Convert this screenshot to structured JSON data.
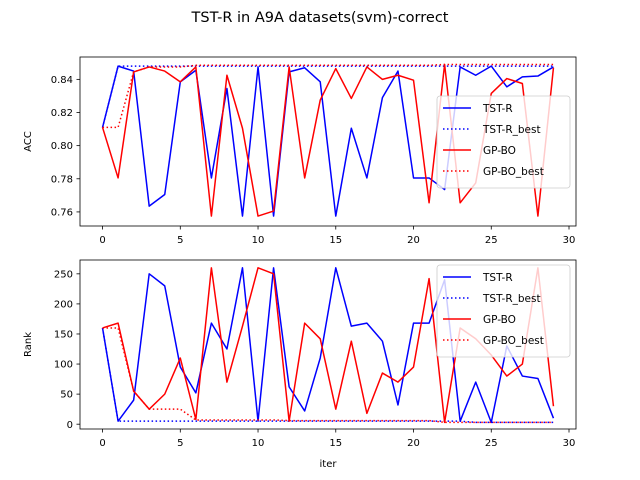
{
  "figure": {
    "title": "TST-R in A9A datasets(svm)-correct"
  },
  "chart_data": [
    {
      "type": "line",
      "id": "acc",
      "title": "",
      "xlabel": "",
      "ylabel": "ACC",
      "xlim": [
        -1.45,
        30.45
      ],
      "ylim": [
        0.7515,
        0.8535
      ],
      "xticks": [
        0,
        5,
        10,
        15,
        20,
        25,
        30
      ],
      "xtick_labels": [
        "0",
        "5",
        "10",
        "15",
        "20",
        "25",
        "30"
      ],
      "yticks": [
        0.76,
        0.78,
        0.8,
        0.82,
        0.84
      ],
      "ytick_labels": [
        "0.76",
        "0.78",
        "0.80",
        "0.82",
        "0.84"
      ],
      "grid": false,
      "legend_position": "center-right",
      "x": [
        0,
        1,
        2,
        3,
        4,
        5,
        6,
        7,
        8,
        9,
        10,
        11,
        12,
        13,
        14,
        15,
        16,
        17,
        18,
        19,
        20,
        21,
        22,
        23,
        24,
        25,
        26,
        27,
        28,
        29
      ],
      "series": [
        {
          "name": "TST-R",
          "color": "#0000ff",
          "style": "solid",
          "values": [
            0.811,
            0.848,
            0.845,
            0.7635,
            0.7705,
            0.8385,
            0.8455,
            0.7805,
            0.8345,
            0.7575,
            0.8475,
            0.7575,
            0.8445,
            0.847,
            0.8385,
            0.7575,
            0.8105,
            0.7805,
            0.829,
            0.845,
            0.7805,
            0.7805,
            0.7735,
            0.8475,
            0.8425,
            0.848,
            0.8355,
            0.8415,
            0.842,
            0.8475
          ]
        },
        {
          "name": "TST-R_best",
          "color": "#0000ff",
          "style": "dotted",
          "values": [
            0.811,
            0.848,
            0.848,
            0.848,
            0.848,
            0.848,
            0.848,
            0.848,
            0.848,
            0.848,
            0.848,
            0.848,
            0.848,
            0.848,
            0.848,
            0.848,
            0.848,
            0.848,
            0.848,
            0.848,
            0.848,
            0.848,
            0.848,
            0.848,
            0.848,
            0.848,
            0.848,
            0.848,
            0.848,
            0.848
          ]
        },
        {
          "name": "GP-BO",
          "color": "#ff0000",
          "style": "solid",
          "values": [
            0.811,
            0.7805,
            0.8445,
            0.8475,
            0.845,
            0.8385,
            0.8475,
            0.7575,
            0.8425,
            0.8105,
            0.7575,
            0.7605,
            0.8475,
            0.7805,
            0.8275,
            0.8465,
            0.8285,
            0.8475,
            0.84,
            0.8425,
            0.8395,
            0.7655,
            0.849,
            0.7655,
            0.7775,
            0.8315,
            0.8405,
            0.8375,
            0.7575,
            0.847
          ]
        },
        {
          "name": "GP-BO_best",
          "color": "#ff0000",
          "style": "dotted",
          "values": [
            0.811,
            0.811,
            0.8445,
            0.8475,
            0.8475,
            0.8475,
            0.8485,
            0.8485,
            0.8485,
            0.8485,
            0.8485,
            0.8485,
            0.8485,
            0.8485,
            0.8485,
            0.8485,
            0.8485,
            0.8485,
            0.8485,
            0.8485,
            0.8485,
            0.8485,
            0.849,
            0.849,
            0.849,
            0.849,
            0.849,
            0.849,
            0.849,
            0.849
          ]
        }
      ]
    },
    {
      "type": "line",
      "id": "rank",
      "title": "",
      "xlabel": "iter",
      "ylabel": "Rank",
      "xlim": [
        -1.45,
        30.45
      ],
      "ylim": [
        -8,
        273
      ],
      "xticks": [
        0,
        5,
        10,
        15,
        20,
        25,
        30
      ],
      "xtick_labels": [
        "0",
        "5",
        "10",
        "15",
        "20",
        "25",
        "30"
      ],
      "yticks": [
        0,
        50,
        100,
        150,
        200,
        250
      ],
      "ytick_labels": [
        "0",
        "50",
        "100",
        "150",
        "200",
        "250"
      ],
      "grid": false,
      "legend_position": "upper-right",
      "x": [
        0,
        1,
        2,
        3,
        4,
        5,
        6,
        7,
        8,
        9,
        10,
        11,
        12,
        13,
        14,
        15,
        16,
        17,
        18,
        19,
        20,
        21,
        22,
        23,
        24,
        25,
        26,
        27,
        28,
        29
      ],
      "series": [
        {
          "name": "TST-R",
          "color": "#0000ff",
          "style": "solid",
          "values": [
            160,
            5,
            40,
            250,
            230,
            95,
            52,
            168,
            125,
            260,
            5,
            260,
            62,
            22,
            110,
            260,
            163,
            168,
            138,
            32,
            168,
            168,
            240,
            5,
            70,
            3,
            130,
            80,
            76,
            10
          ]
        },
        {
          "name": "TST-R_best",
          "color": "#0000ff",
          "style": "dotted",
          "values": [
            160,
            5,
            5,
            5,
            5,
            5,
            5,
            5,
            5,
            5,
            5,
            5,
            5,
            5,
            5,
            5,
            5,
            5,
            5,
            5,
            5,
            5,
            5,
            5,
            3,
            3,
            3,
            3,
            3,
            3
          ]
        },
        {
          "name": "GP-BO",
          "color": "#ff0000",
          "style": "solid",
          "values": [
            160,
            168,
            55,
            25,
            50,
            110,
            8,
            260,
            70,
            163,
            260,
            250,
            5,
            168,
            142,
            25,
            138,
            18,
            85,
            70,
            95,
            242,
            3,
            160,
            142,
            115,
            80,
            100,
            260,
            30
          ]
        },
        {
          "name": "GP-BO_best",
          "color": "#ff0000",
          "style": "dotted",
          "values": [
            160,
            160,
            55,
            25,
            25,
            25,
            7,
            7,
            7,
            7,
            7,
            7,
            6,
            6,
            6,
            6,
            6,
            6,
            6,
            6,
            6,
            6,
            3,
            3,
            3,
            3,
            3,
            3,
            3,
            3
          ]
        }
      ]
    }
  ]
}
